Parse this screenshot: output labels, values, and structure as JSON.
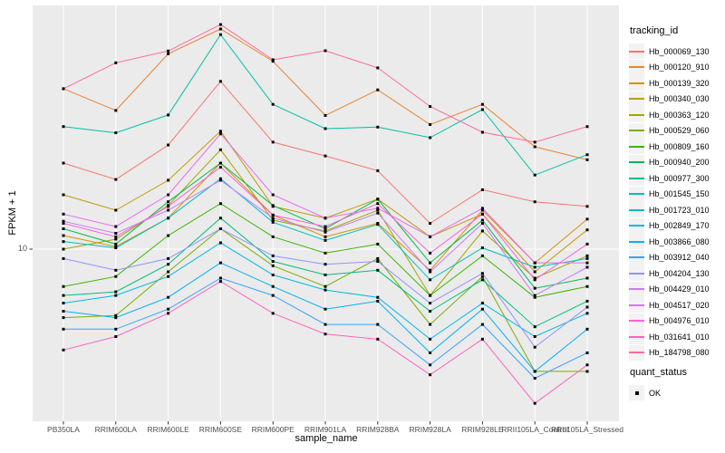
{
  "figure": {
    "panel_bg": "#EBEBEB",
    "grid_color": "#FFFFFF",
    "tick_color": "#333333",
    "tick_label_color": "#4D4D4D",
    "point_color": "#000000"
  },
  "axes": {
    "y_title": "FPKM + 1",
    "x_title": "sample_name",
    "y_tick_label": "10"
  },
  "legend": {
    "tracking_title": "tracking_id",
    "quant_title": "quant_status",
    "quant_items": [
      {
        "label": "OK",
        "shape": "black-square"
      }
    ]
  },
  "chart_data": {
    "type": "line",
    "title": "",
    "xlabel": "sample_name",
    "ylabel": "FPKM + 1",
    "y_scale": "log10",
    "y_tick_labels": [
      "10"
    ],
    "ylim_approx": [
      3,
      60
    ],
    "grid": "vertical-per-category-plus-y10",
    "legend_position": "right",
    "point_marker": "black-square",
    "quant_status": "OK",
    "categories": [
      "PB350LA",
      "RRIM600LA",
      "RRIM600LE",
      "RRIM600SE",
      "RRIM600PE",
      "RRIM901LA",
      "RRIM928BA",
      "RRIM928LA",
      "RRIM928LE",
      "RRII105LA_Control",
      "RRII105LA_Stressed"
    ],
    "series": [
      {
        "name": "Hb_000069_130",
        "color": "#F8766D",
        "values": [
          19.4,
          17.1,
          22.3,
          36.4,
          22.8,
          20.5,
          18.3,
          12.2,
          15.8,
          14.4,
          13.9
        ]
      },
      {
        "name": "Hb_000120_910",
        "color": "#EA8331",
        "values": [
          34.4,
          29.1,
          45.0,
          54.5,
          42.5,
          28.0,
          34.1,
          26.1,
          30.5,
          22.0,
          19.9
        ]
      },
      {
        "name": "Hb_000139_320",
        "color": "#D89000",
        "values": [
          11.1,
          10.2,
          12.7,
          19.4,
          13.0,
          11.0,
          12.2,
          8.5,
          13.5,
          9.0,
          12.6
        ]
      },
      {
        "name": "Hb_000340_030",
        "color": "#C09B00",
        "values": [
          15.2,
          13.5,
          17.0,
          24.8,
          13.9,
          12.7,
          14.7,
          11.0,
          13.1,
          8.4,
          11.6
        ]
      },
      {
        "name": "Hb_000363_120",
        "color": "#A3A500",
        "values": [
          10.0,
          10.8,
          14.0,
          21.5,
          12.5,
          11.5,
          13.5,
          7.0,
          11.5,
          8.0,
          9.5
        ]
      },
      {
        "name": "Hb_000529_060",
        "color": "#7CAE00",
        "values": [
          5.9,
          6.0,
          8.4,
          11.7,
          8.8,
          7.5,
          9.3,
          5.6,
          8.1,
          3.9,
          3.9
        ]
      },
      {
        "name": "Hb_000809_160",
        "color": "#39B600",
        "values": [
          7.5,
          8.1,
          11.1,
          14.2,
          11.0,
          9.7,
          10.4,
          7.0,
          9.5,
          6.9,
          7.5
        ]
      },
      {
        "name": "Hb_000940_200",
        "color": "#00BB4E",
        "values": [
          11.7,
          10.4,
          14.4,
          19.4,
          14.0,
          11.7,
          14.7,
          9.0,
          12.5,
          7.4,
          8.0
        ]
      },
      {
        "name": "Hb_000977_300",
        "color": "#00BF7D",
        "values": [
          7.0,
          7.2,
          8.9,
          12.7,
          9.1,
          8.2,
          8.5,
          6.2,
          7.9,
          5.5,
          6.7
        ]
      },
      {
        "name": "Hb_001545_150",
        "color": "#00C1A3",
        "values": [
          25.7,
          24.5,
          28.1,
          52.2,
          30.5,
          25.3,
          25.6,
          23.6,
          29.3,
          17.7,
          20.7
        ]
      },
      {
        "name": "Hb_001723_010",
        "color": "#00BFC4",
        "values": [
          10.6,
          10.1,
          12.7,
          17.2,
          12.3,
          10.7,
          12.1,
          7.9,
          10.1,
          8.7,
          9.3
        ]
      },
      {
        "name": "Hb_002849_170",
        "color": "#00BAE0",
        "values": [
          6.6,
          7.0,
          8.1,
          10.5,
          8.2,
          7.3,
          6.9,
          5.0,
          6.6,
          5.1,
          6.1
        ]
      },
      {
        "name": "Hb_003866_080",
        "color": "#00B0F6",
        "values": [
          6.2,
          5.9,
          6.9,
          9.0,
          7.5,
          6.3,
          6.7,
          4.5,
          6.3,
          3.9,
          5.4
        ]
      },
      {
        "name": "Hb_003912_040",
        "color": "#35A2FF",
        "values": [
          5.4,
          5.4,
          6.3,
          8.0,
          7.0,
          5.6,
          5.6,
          4.1,
          5.6,
          3.7,
          4.5
        ]
      },
      {
        "name": "Hb_004204_130",
        "color": "#9590FF",
        "values": [
          9.3,
          8.5,
          9.3,
          11.7,
          9.5,
          8.9,
          9.1,
          6.6,
          8.3,
          4.7,
          6.4
        ]
      },
      {
        "name": "Hb_004429_010",
        "color": "#C77CFF",
        "values": [
          12.4,
          11.3,
          13.5,
          17.0,
          12.7,
          11.4,
          13.2,
          8.4,
          12.2,
          7.0,
          8.7
        ]
      },
      {
        "name": "Hb_004517_020",
        "color": "#E76BF3",
        "values": [
          13.1,
          11.9,
          15.2,
          24.3,
          15.2,
          12.7,
          13.7,
          11.0,
          13.7,
          9.0,
          9.0
        ]
      },
      {
        "name": "Hb_004976_010",
        "color": "#FA62DB",
        "values": [
          12.2,
          11.0,
          13.9,
          18.8,
          13.0,
          11.9,
          14.2,
          9.7,
          13.1,
          7.9,
          10.4
        ]
      },
      {
        "name": "Hb_031641_010",
        "color": "#FF62BC",
        "values": [
          4.6,
          5.1,
          6.1,
          7.8,
          6.1,
          5.2,
          5.0,
          3.8,
          5.0,
          3.05,
          4.1
        ]
      },
      {
        "name": "Hb_184798_080",
        "color": "#FF6A98",
        "values": [
          34.4,
          42.0,
          46.0,
          56.4,
          43.0,
          46.1,
          40.4,
          30.0,
          24.6,
          22.8,
          25.7
        ]
      }
    ]
  }
}
